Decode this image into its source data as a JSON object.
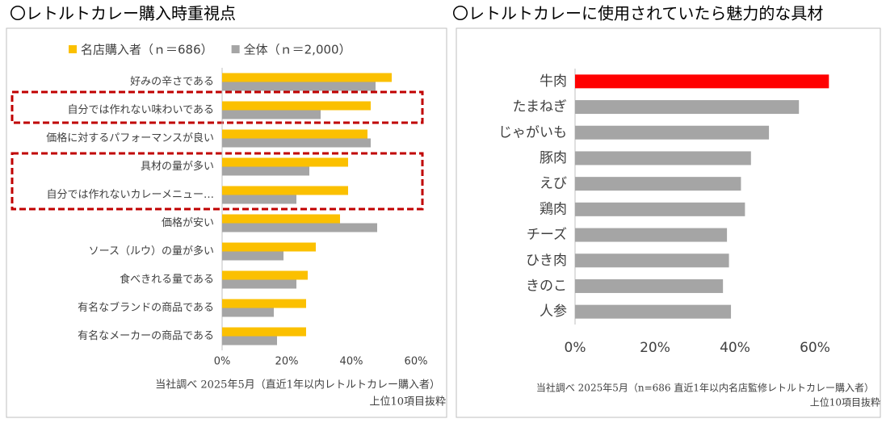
{
  "chart_data": [
    {
      "type": "bar",
      "orientation": "horizontal",
      "title": "〇レトルトカレー購入時重視点",
      "categories": [
        "好みの辛さである",
        "自分では作れない味わいである",
        "価格に対するパフォーマンスが良い",
        "具材の量が多い",
        "自分では作れないカレーメニュー…",
        "価格が安い",
        "ソース（ルウ）の量が多い",
        "食べきれる量である",
        "有名なブランドの商品である",
        "有名なメーカーの商品である"
      ],
      "series": [
        {
          "name": "名店購入者（ｎ＝686）",
          "color": "#fbc000",
          "values": [
            52.5,
            46,
            45,
            39,
            39,
            36.5,
            29,
            26.5,
            26,
            26
          ]
        },
        {
          "name": "全体（ｎ＝2,000）",
          "color": "#a5a5a5",
          "values": [
            47.5,
            30.5,
            46,
            27,
            23,
            48,
            19,
            23,
            16,
            17
          ]
        }
      ],
      "xlim": [
        0,
        65
      ],
      "xticks": [
        {
          "value": 0,
          "label": "0%"
        },
        {
          "value": 20,
          "label": "20%"
        },
        {
          "value": 40,
          "label": "40%"
        },
        {
          "value": 60,
          "label": "60%"
        }
      ],
      "grid": false,
      "legend": "top",
      "notes": [
        "当社調べ 2025年5月（直近1年以内レトルトカレー購入者）",
        "上位10項目抜粋"
      ]
    },
    {
      "type": "bar",
      "orientation": "horizontal",
      "title": "〇レトルトカレーに使用されていたら魅力的な具材",
      "categories": [
        "牛肉",
        "たまねぎ",
        "じゃがいも",
        "豚肉",
        "えび",
        "鶏肉",
        "チーズ",
        "ひき肉",
        "きのこ",
        "人参"
      ],
      "values": [
        63.5,
        56,
        48.5,
        44,
        41.5,
        42.5,
        38,
        38.5,
        37,
        39
      ],
      "colors": [
        "#ff0000",
        "#a5a5a5",
        "#a5a5a5",
        "#a5a5a5",
        "#a5a5a5",
        "#a5a5a5",
        "#a5a5a5",
        "#a5a5a5",
        "#a5a5a5",
        "#a5a5a5"
      ],
      "xlim": [
        0,
        70
      ],
      "xticks": [
        {
          "value": 0,
          "label": "0%"
        },
        {
          "value": 20,
          "label": "20%"
        },
        {
          "value": 40,
          "label": "40%"
        },
        {
          "value": 60,
          "label": "60%"
        }
      ],
      "grid": false,
      "notes": [
        "当社調べ 2025年5月（n=686 直近1年以内名店監修レトルトカレー購入者）",
        "上位10項目抜粋"
      ]
    }
  ]
}
